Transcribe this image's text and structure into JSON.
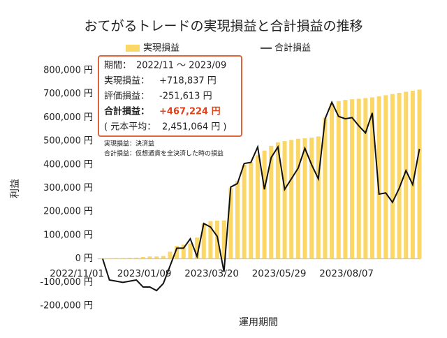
{
  "chart_data": {
    "type": "bar-line",
    "title": "おてがるトレードの実現損益と合計損益の推移",
    "x_label": "運用期間",
    "y_label": "利益",
    "categories": [
      "2022/11/01",
      null,
      null,
      null,
      null,
      null,
      null,
      null,
      null,
      null,
      "2023/01/09",
      null,
      null,
      null,
      null,
      null,
      null,
      null,
      null,
      null,
      "2023/03/20",
      null,
      null,
      null,
      null,
      null,
      null,
      null,
      null,
      null,
      "2023/05/29",
      null,
      null,
      null,
      null,
      null,
      null,
      null,
      null,
      null,
      "2023/08/07",
      null,
      null,
      null,
      null,
      null,
      null,
      null
    ],
    "series": [
      {
        "name": "実現損益",
        "type": "bar",
        "color": "#fad766",
        "values": [
          0,
          2000,
          3000,
          3000,
          4000,
          5000,
          8000,
          10000,
          10000,
          12000,
          30000,
          55000,
          60000,
          65000,
          90000,
          150000,
          160000,
          162000,
          163000,
          300000,
          330000,
          400000,
          410000,
          440000,
          460000,
          480000,
          495000,
          500000,
          505000,
          510000,
          512000,
          515000,
          520000,
          600000,
          660000,
          670000,
          675000,
          678000,
          680000,
          683000,
          686000,
          690000,
          695000,
          700000,
          705000,
          710000,
          714000,
          718837
        ]
      },
      {
        "name": "合計損益",
        "type": "line",
        "color": "#111111",
        "values": [
          0,
          -90000,
          -95000,
          -100000,
          -95000,
          -90000,
          -120000,
          -120000,
          -135000,
          -105000,
          -30000,
          45000,
          45000,
          85000,
          10000,
          150000,
          135000,
          95000,
          -55000,
          305000,
          320000,
          405000,
          410000,
          475000,
          295000,
          430000,
          475000,
          295000,
          340000,
          385000,
          470000,
          400000,
          340000,
          595000,
          665000,
          605000,
          595000,
          600000,
          565000,
          535000,
          620000,
          275000,
          280000,
          240000,
          300000,
          375000,
          315000,
          467224
        ]
      }
    ],
    "ylim": [
      -200000,
      800000
    ],
    "yticks": [
      {
        "value": -200000,
        "label": "-200,000 円"
      },
      {
        "value": -100000,
        "label": "-100,000 円"
      },
      {
        "value": 0,
        "label": "0 円"
      },
      {
        "value": 100000,
        "label": "100,000 円"
      },
      {
        "value": 200000,
        "label": "200,000 円"
      },
      {
        "value": 300000,
        "label": "300,000 円"
      },
      {
        "value": 400000,
        "label": "400,000 円"
      },
      {
        "value": 500000,
        "label": "500,000 円"
      },
      {
        "value": 600000,
        "label": "600,000 円"
      },
      {
        "value": 700000,
        "label": "700,000 円"
      },
      {
        "value": 800000,
        "label": "800,000 円"
      }
    ],
    "grid": false,
    "annotation": [
      {
        "label": "期間：",
        "value": "2022/11 ～ 2023/09"
      },
      {
        "label": "実現損益：",
        "value": "+718,837 円"
      },
      {
        "label": "評価損益：",
        "value": "-251,613 円"
      },
      {
        "label": "合計損益：",
        "value": "+467,224 円"
      },
      {
        "label": "( 元本平均：",
        "value": "2,451,064 円 )"
      }
    ],
    "notes": [
      "実現損益：決済益",
      "合計損益：仮想通貨を全決済した時の損益"
    ]
  }
}
